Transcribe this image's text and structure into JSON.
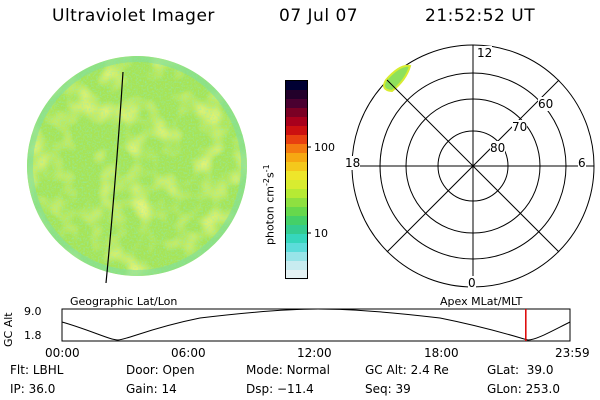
{
  "header": {
    "instrument": "Ultraviolet Imager",
    "date": "07 Jul 07",
    "time": "21:52:52 UT"
  },
  "colorbar": {
    "label_main": "photon cm",
    "label_exp1": "-2",
    "label_mid": "s",
    "label_exp2": "-1",
    "ticks": [
      "100",
      "10"
    ],
    "colors": [
      "#000033",
      "#22002a",
      "#4a0030",
      "#7a0024",
      "#a8001c",
      "#cc1010",
      "#e84010",
      "#f47a10",
      "#f6a812",
      "#f4c81c",
      "#eee62a",
      "#d8ec30",
      "#b6ea34",
      "#8ee040",
      "#66d84c",
      "#44d068",
      "#34cc90",
      "#36d6bc",
      "#5cdcda",
      "#98e4e8",
      "#c8ecf0",
      "#e4f2f4"
    ]
  },
  "polar_plot": {
    "mlt_labels": {
      "top": "12",
      "left": "18",
      "right": "6",
      "bottom": "0"
    },
    "lat_labels": [
      "60",
      "70",
      "80"
    ]
  },
  "timeline": {
    "y_axis_label": "GC Alt",
    "y_max": "9.0",
    "y_min": "1.8",
    "left_caption": "Geographic Lat/Lon",
    "right_caption": "Apex MLat/MLT",
    "time_ticks": [
      "00:00",
      "06:00",
      "12:00",
      "18:00",
      "23:59"
    ],
    "current_fraction": 0.913,
    "marker_color": "#dd0000"
  },
  "status": {
    "row1": [
      {
        "label": "Flt:",
        "value": "LBHL"
      },
      {
        "label": "Door:",
        "value": "Open"
      },
      {
        "label": "Mode:",
        "value": "Normal"
      },
      {
        "label": "GC Alt:",
        "value": "2.4 Re"
      },
      {
        "label": "GLat:",
        "value": "39.0"
      }
    ],
    "row2": [
      {
        "label": "IP:",
        "value": "36.0"
      },
      {
        "label": "Gain:",
        "value": "14"
      },
      {
        "label": "Dsp:",
        "value": "−11.4"
      },
      {
        "label": "Seq:",
        "value": "39"
      },
      {
        "label": "GLon:",
        "value": "253.0"
      }
    ]
  }
}
